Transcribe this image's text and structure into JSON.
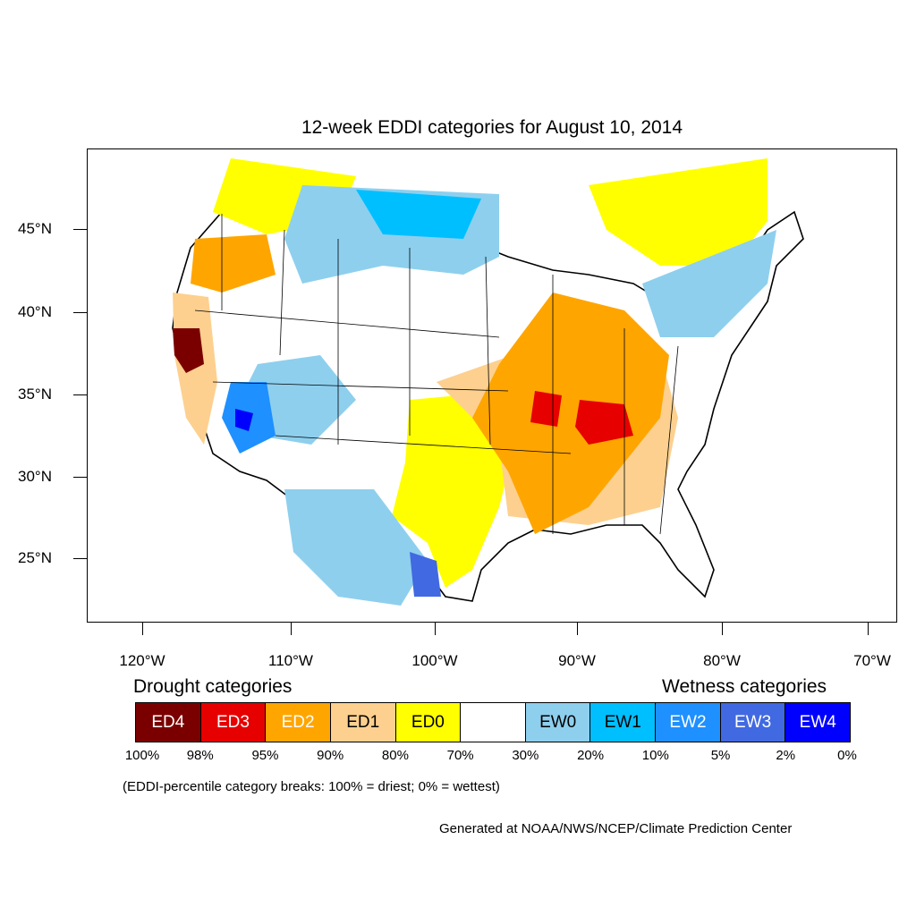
{
  "title": "12-week EDDI categories for August 10, 2014",
  "axes": {
    "lat_labels": [
      "45°N",
      "40°N",
      "35°N",
      "30°N",
      "25°N"
    ],
    "lon_labels": [
      "120°W",
      "110°W",
      "100°W",
      "90°W",
      "80°W",
      "70°W"
    ]
  },
  "legend": {
    "drought_heading": "Drought categories",
    "wetness_heading": "Wetness categories",
    "categories": [
      {
        "label": "ED4",
        "color": "#7a0000",
        "text_color": "#ffffff"
      },
      {
        "label": "ED3",
        "color": "#e60000",
        "text_color": "#ffffff"
      },
      {
        "label": "ED2",
        "color": "#ffa500",
        "text_color": "#ffffff"
      },
      {
        "label": "ED1",
        "color": "#fdd08f",
        "text_color": "#000000"
      },
      {
        "label": "ED0",
        "color": "#ffff00",
        "text_color": "#000000"
      },
      {
        "label": "",
        "color": "#ffffff",
        "text_color": "#000000"
      },
      {
        "label": "EW0",
        "color": "#8ecfee",
        "text_color": "#000000"
      },
      {
        "label": "EW1",
        "color": "#00bfff",
        "text_color": "#000000"
      },
      {
        "label": "EW2",
        "color": "#1e90ff",
        "text_color": "#ffffff"
      },
      {
        "label": "EW3",
        "color": "#4169e1",
        "text_color": "#ffffff"
      },
      {
        "label": "EW4",
        "color": "#0000ff",
        "text_color": "#ffffff"
      }
    ],
    "breaks": [
      "100%",
      "98%",
      "95%",
      "90%",
      "80%",
      "70%",
      "30%",
      "20%",
      "10%",
      "5%",
      "2%",
      "0%"
    ]
  },
  "note": "(EDDI-percentile category breaks: 100% = driest; 0% = wettest)",
  "credit": "Generated at NOAA/NWS/NCEP/Climate Prediction Center"
}
